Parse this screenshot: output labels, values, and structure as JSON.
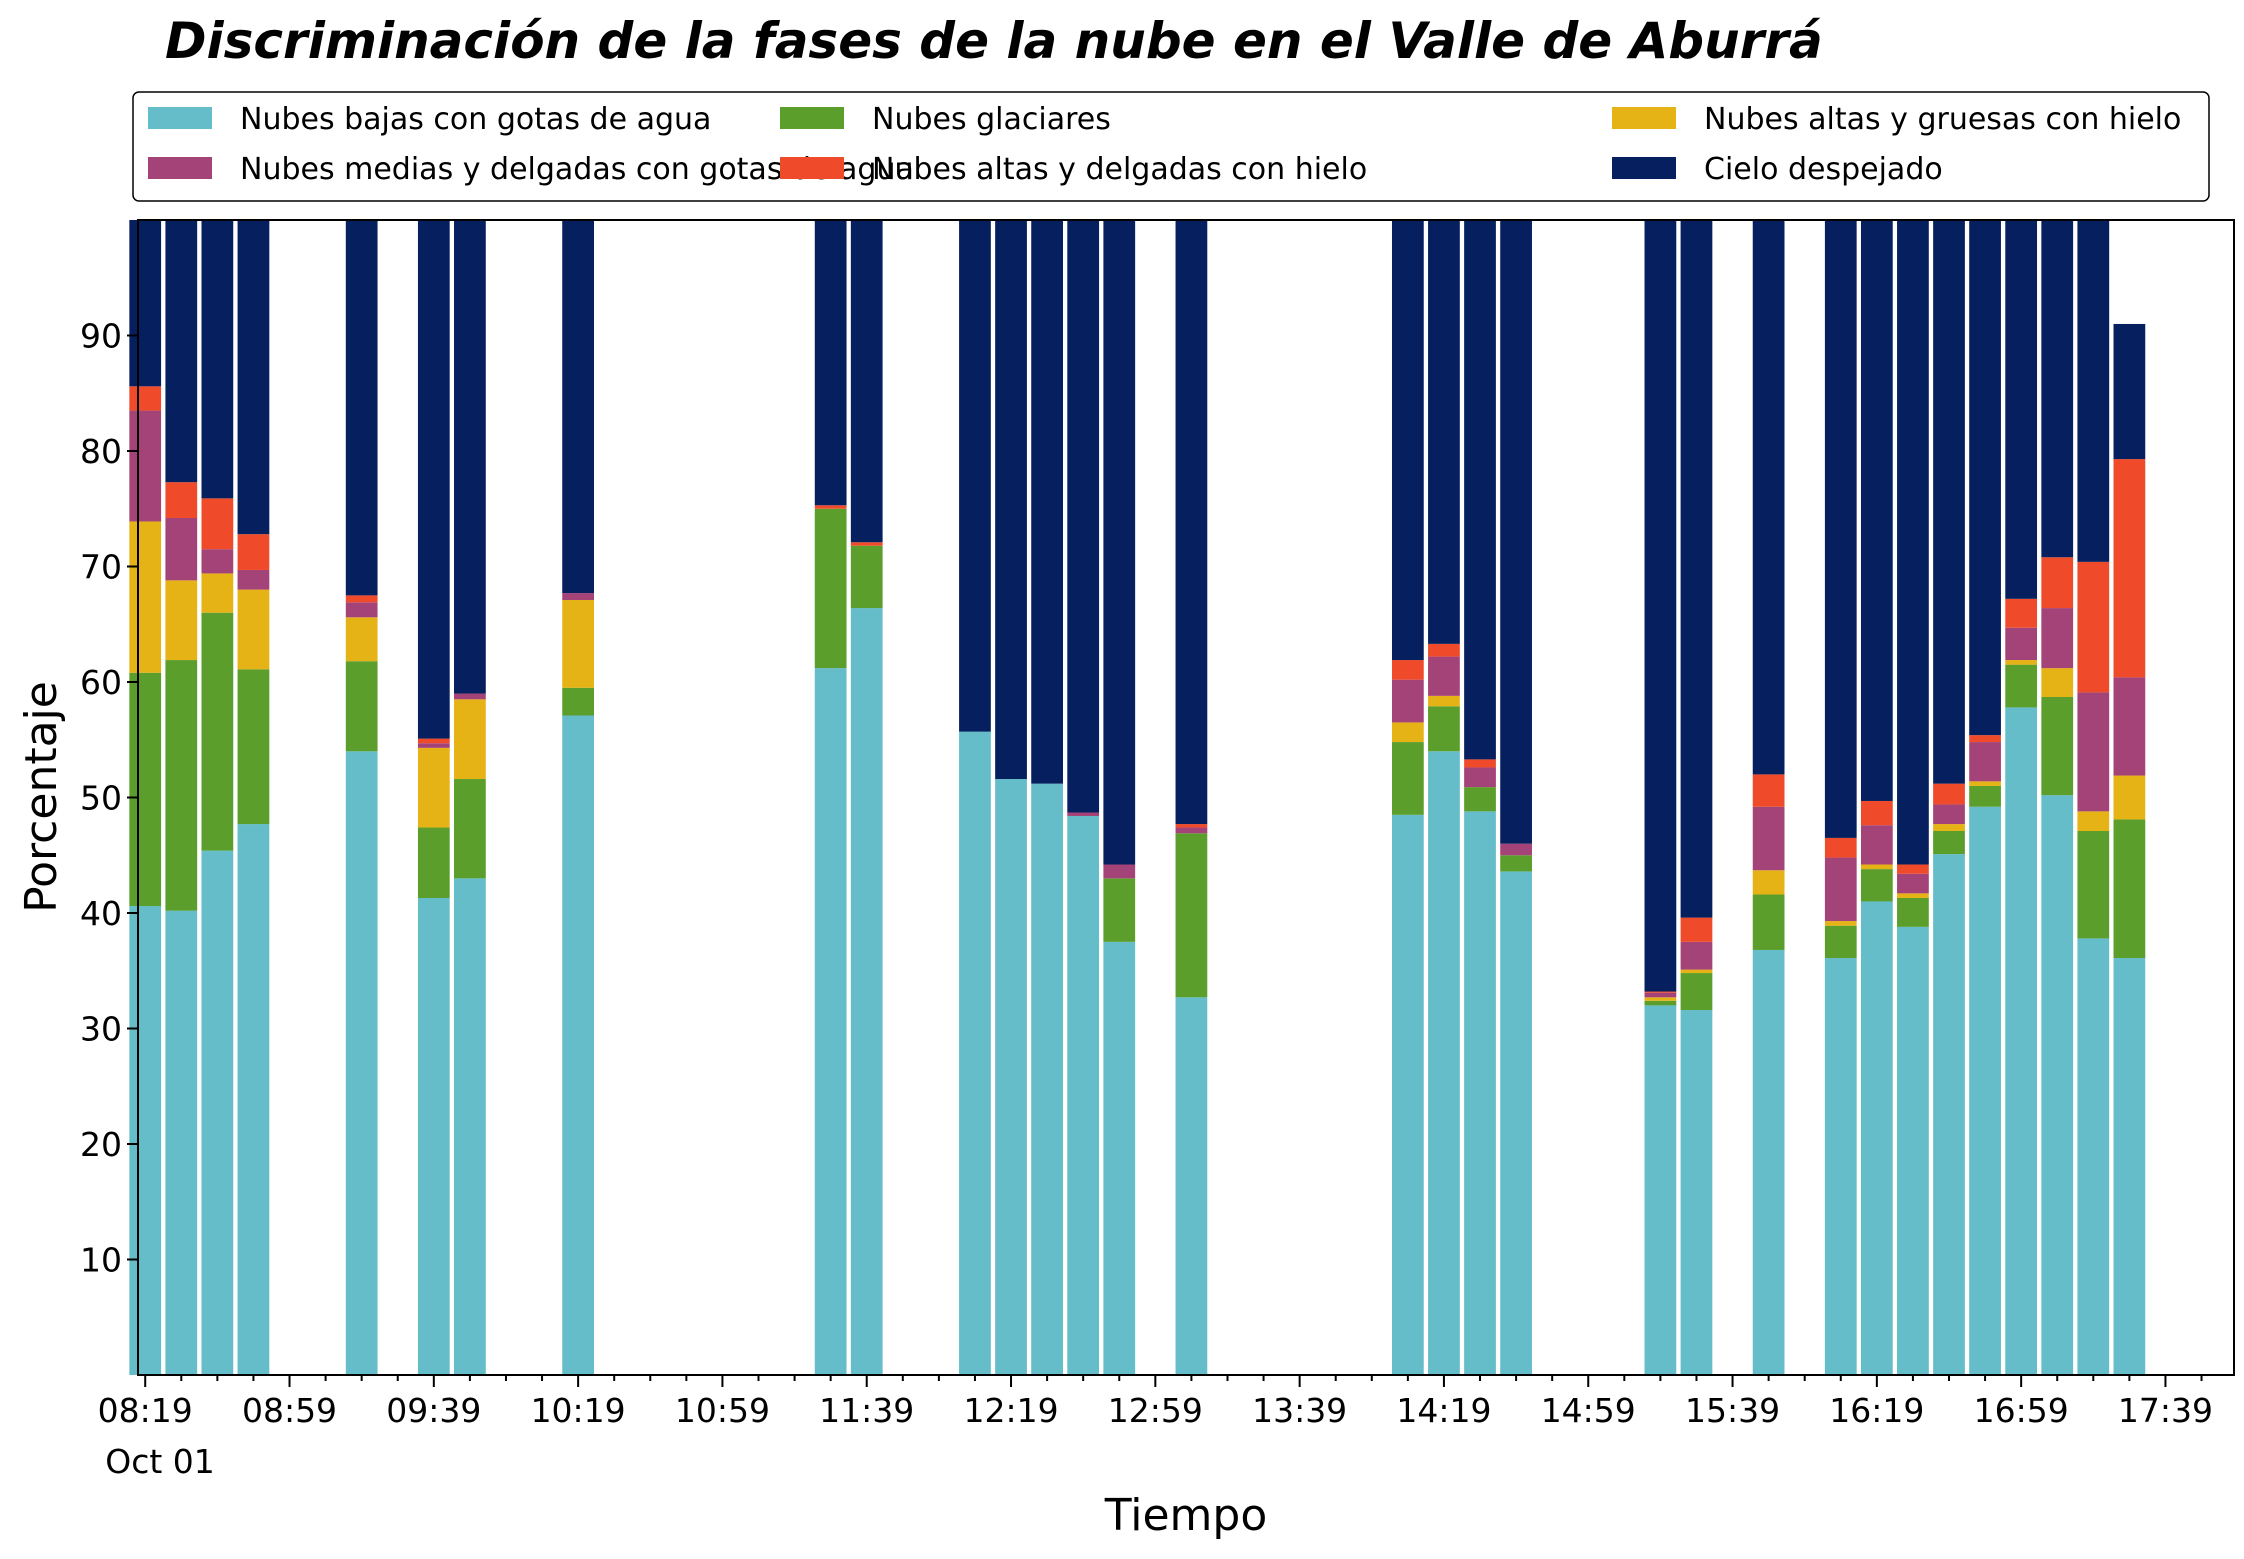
{
  "chart_data": {
    "type": "bar",
    "stacked": true,
    "title": "Discriminación de la fases de la nube en el Valle de Aburrá",
    "xlabel": "Tiempo",
    "ylabel": "Porcentaje",
    "ylim": [
      0,
      100
    ],
    "y_ticks": [
      10,
      20,
      30,
      40,
      50,
      60,
      70,
      80,
      90
    ],
    "x_ticks": [
      "08:19",
      "08:59",
      "09:39",
      "10:19",
      "10:59",
      "11:39",
      "12:19",
      "12:59",
      "13:39",
      "14:19",
      "14:59",
      "15:39",
      "16:19",
      "16:59",
      "17:39"
    ],
    "x_date_label": "Oct 01",
    "x_range": [
      "08:17",
      "17:58"
    ],
    "grid": false,
    "legend_position": "top",
    "x": [
      "08:19",
      "08:29",
      "08:39",
      "08:49",
      "09:19",
      "09:39",
      "09:49",
      "10:19",
      "11:29",
      "11:39",
      "12:09",
      "12:19",
      "12:29",
      "12:39",
      "12:49",
      "13:09",
      "14:09",
      "14:19",
      "14:29",
      "14:39",
      "15:19",
      "15:29",
      "15:49",
      "16:09",
      "16:19",
      "16:29",
      "16:39",
      "16:49",
      "16:59",
      "17:09",
      "17:19",
      "17:29"
    ],
    "series": [
      {
        "name": "Nubes bajas con gotas de agua",
        "color": "#64bdc8",
        "values": [
          40.6,
          40.2,
          45.4,
          47.7,
          54.0,
          41.3,
          43.0,
          57.1,
          61.2,
          66.4,
          55.7,
          51.6,
          51.2,
          48.4,
          37.5,
          32.7,
          48.5,
          54.0,
          48.8,
          43.6,
          32.0,
          31.6,
          36.8,
          36.1,
          41.0,
          38.8,
          45.1,
          49.2,
          57.8,
          50.2,
          37.8,
          36.1
        ]
      },
      {
        "name": "Nubes glaciares",
        "color": "#5b9e2b",
        "values": [
          20.2,
          21.7,
          20.6,
          13.4,
          7.8,
          6.1,
          8.6,
          2.4,
          13.8,
          5.4,
          0,
          0,
          0,
          0,
          5.5,
          14.2,
          6.3,
          3.9,
          2.1,
          1.4,
          0.4,
          3.2,
          4.8,
          2.8,
          2.8,
          2.5,
          2.0,
          1.8,
          3.7,
          8.5,
          9.3,
          12.0
        ]
      },
      {
        "name": "Nubes altas y gruesas con hielo",
        "color": "#e6b316",
        "values": [
          13.1,
          6.9,
          3.4,
          6.9,
          3.8,
          6.9,
          6.9,
          7.6,
          0,
          0,
          0,
          0,
          0,
          0,
          0,
          0,
          1.7,
          0.9,
          0,
          0,
          0.3,
          0.3,
          2.1,
          0.4,
          0.4,
          0.4,
          0.6,
          0.4,
          0.4,
          2.5,
          1.7,
          3.8
        ]
      },
      {
        "name": "Nubes medias y delgadas con gotas de agua",
        "color": "#a44378",
        "values": [
          9.6,
          5.4,
          2.1,
          1.7,
          1.3,
          0.4,
          0.5,
          0.6,
          0,
          0,
          0,
          0,
          0,
          0.3,
          1.2,
          0.5,
          3.7,
          3.4,
          1.7,
          1.0,
          0.4,
          2.4,
          5.5,
          5.5,
          3.4,
          1.7,
          1.7,
          3.4,
          2.8,
          5.2,
          10.3,
          8.5
        ]
      },
      {
        "name": "Nubes altas y delgadas con hielo",
        "color": "#ef4b2a",
        "values": [
          2.1,
          3.1,
          4.4,
          3.1,
          0.6,
          0.4,
          0,
          0,
          0.3,
          0.3,
          0,
          0,
          0,
          0,
          0,
          0.3,
          1.7,
          1.1,
          0.7,
          0,
          0.1,
          2.1,
          2.8,
          1.7,
          2.1,
          0.8,
          1.8,
          0.6,
          2.5,
          4.4,
          11.3,
          18.9
        ]
      },
      {
        "name": "Cielo despejado",
        "color": "#061f5e",
        "values": [
          14.4,
          22.7,
          24.1,
          27.2,
          32.5,
          44.9,
          41.0,
          32.3,
          24.7,
          27.9,
          44.3,
          48.4,
          48.8,
          51.3,
          55.8,
          52.3,
          38.1,
          36.7,
          46.7,
          54.0,
          66.8,
          60.4,
          48.0,
          53.5,
          50.3,
          55.8,
          48.8,
          44.6,
          32.8,
          29.2,
          29.6,
          11.7
        ]
      }
    ]
  }
}
